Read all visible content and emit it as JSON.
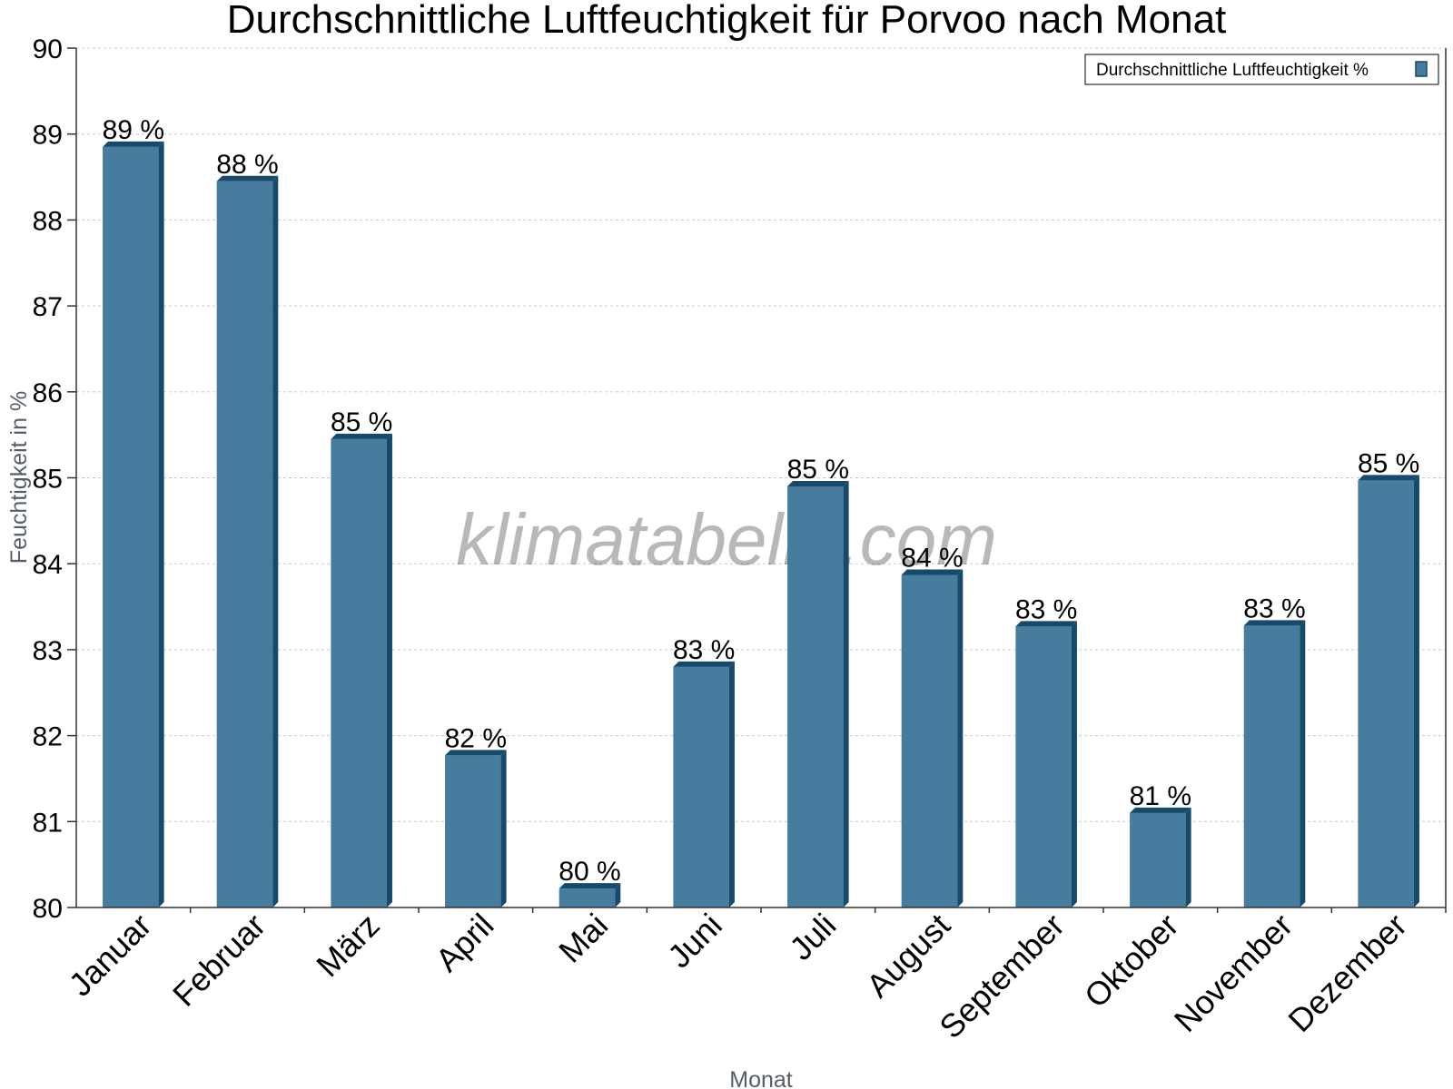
{
  "chart_data": {
    "type": "bar",
    "title": "Durchschnittliche Luftfeuchtigkeit für Porvoo nach Monat",
    "xlabel": "Monat",
    "ylabel": "Feuchtigkeit in %",
    "categories": [
      "Januar",
      "Februar",
      "März",
      "April",
      "Mai",
      "Juni",
      "Juli",
      "August",
      "September",
      "Oktober",
      "November",
      "Dezember"
    ],
    "series": [
      {
        "name": "Durchschnittliche Luftfeuchtigkeit %",
        "values": [
          88.85,
          88.45,
          85.45,
          81.77,
          80.22,
          82.8,
          84.9,
          83.87,
          83.27,
          81.1,
          83.28,
          84.97
        ],
        "data_labels": [
          "89 %",
          "88 %",
          "85 %",
          "82 %",
          "80 %",
          "83 %",
          "85 %",
          "84 %",
          "83 %",
          "81 %",
          "83 %",
          "85 %"
        ],
        "color": "#467c9e",
        "edge_color": "#174a6a"
      }
    ],
    "ylim": [
      80,
      90
    ],
    "yticks": [
      "80",
      "81",
      "82",
      "83",
      "84",
      "85",
      "86",
      "87",
      "88",
      "89",
      "90"
    ],
    "grid": true,
    "legend": "top-right",
    "watermark": "klimatabelle.com"
  }
}
